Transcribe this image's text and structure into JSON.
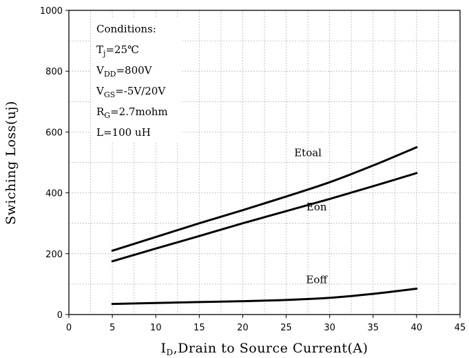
{
  "chart_data": {
    "type": "line",
    "xlabel": {
      "pre": "I",
      "sub": "D",
      "rest": ",Drain to Source Current(A)"
    },
    "ylabel": "Swiching Loss(uj)",
    "xlim": [
      0,
      45
    ],
    "ylim": [
      0,
      1000
    ],
    "xticks": [
      0,
      5,
      10,
      15,
      20,
      25,
      30,
      35,
      40,
      45
    ],
    "yticks": [
      0,
      200,
      400,
      600,
      800,
      1000
    ],
    "grid": true,
    "conditions": [
      {
        "main": "Conditions:",
        "sub": "",
        "rest": ""
      },
      {
        "main": "T",
        "sub": "j",
        "rest": "=25℃"
      },
      {
        "main": "V",
        "sub": "DD",
        "rest": "=800V"
      },
      {
        "main": "V",
        "sub": "GS",
        "rest": "=-5V/20V"
      },
      {
        "main": "R",
        "sub": "G",
        "rest": "=2.7mohm"
      },
      {
        "main": "L=100 uH",
        "sub": "",
        "rest": ""
      }
    ],
    "series": [
      {
        "name": "Etoal",
        "x": [
          5,
          10,
          15,
          20,
          25,
          30,
          35,
          40
        ],
        "y": [
          210,
          255,
          300,
          343,
          388,
          435,
          490,
          550
        ]
      },
      {
        "name": "Eon",
        "x": [
          5,
          10,
          15,
          20,
          25,
          30,
          35,
          40
        ],
        "y": [
          175,
          217,
          258,
          300,
          340,
          380,
          422,
          465
        ]
      },
      {
        "name": "Eoff",
        "x": [
          5,
          10,
          15,
          20,
          25,
          30,
          35,
          40
        ],
        "y": [
          35,
          38,
          41,
          44,
          48,
          55,
          68,
          85
        ]
      }
    ]
  }
}
